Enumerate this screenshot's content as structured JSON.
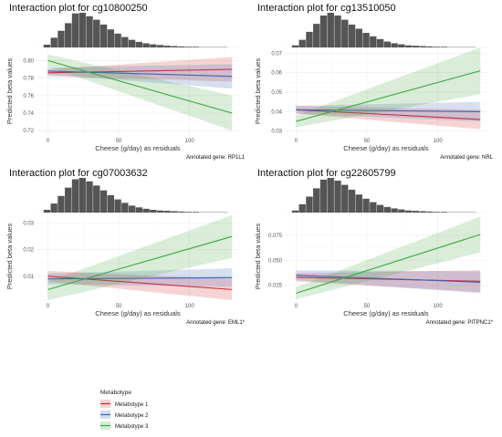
{
  "chart_data": [
    {
      "type": "line",
      "title": "Interaction plot for cg10800250",
      "xlabel": "Cheese (g/day) as residuals",
      "ylabel": "Predicted beta values",
      "xlim": [
        -8,
        135
      ],
      "ylim": [
        0.715,
        0.815
      ],
      "xticks": [
        0,
        50,
        100
      ],
      "yticks": [
        0.72,
        0.74,
        0.76,
        0.78,
        0.8
      ],
      "ytick_labels": [
        "0.72",
        "0.74",
        "0.76",
        "0.78",
        "0.80"
      ],
      "gene_note": "Annotated gene: RP1L1",
      "histogram": [
        8,
        28,
        48,
        70,
        98,
        100,
        90,
        80,
        66,
        52,
        40,
        30,
        22,
        16,
        12,
        9,
        7,
        5,
        4,
        3,
        2,
        2,
        1,
        1,
        1,
        1
      ],
      "series": [
        {
          "name": "Metabotype 1",
          "x": [
            0,
            130
          ],
          "y": [
            0.786,
            0.79
          ],
          "lower": [
            0.782,
            0.776
          ],
          "upper": [
            0.79,
            0.804
          ]
        },
        {
          "name": "Metabotype 2",
          "x": [
            0,
            130
          ],
          "y": [
            0.788,
            0.782
          ],
          "lower": [
            0.784,
            0.768
          ],
          "upper": [
            0.792,
            0.796
          ]
        },
        {
          "name": "Metabotype 3",
          "x": [
            0,
            130
          ],
          "y": [
            0.8,
            0.74
          ],
          "lower": [
            0.793,
            0.72
          ],
          "upper": [
            0.807,
            0.76
          ]
        }
      ]
    },
    {
      "type": "line",
      "title": "Interaction plot for cg13510050",
      "xlabel": "Cheese (g/day) as residuals",
      "ylabel": "Predicted beta values",
      "xlim": [
        -8,
        135
      ],
      "ylim": [
        0.028,
        0.073
      ],
      "xticks": [
        0,
        50,
        100
      ],
      "yticks": [
        0.03,
        0.04,
        0.05,
        0.06,
        0.07
      ],
      "ytick_labels": [
        "0.03",
        "0.04",
        "0.05",
        "0.06",
        "0.07"
      ],
      "gene_note": "Annotated gene: NRL",
      "histogram": [
        6,
        22,
        45,
        68,
        92,
        100,
        92,
        80,
        66,
        54,
        42,
        32,
        24,
        17,
        12,
        9,
        6,
        5,
        4,
        3,
        2,
        2,
        1,
        1,
        1,
        1
      ],
      "series": [
        {
          "name": "Metabotype 1",
          "x": [
            0,
            130
          ],
          "y": [
            0.041,
            0.036
          ],
          "lower": [
            0.039,
            0.031
          ],
          "upper": [
            0.043,
            0.041
          ]
        },
        {
          "name": "Metabotype 2",
          "x": [
            0,
            130
          ],
          "y": [
            0.041,
            0.04
          ],
          "lower": [
            0.039,
            0.035
          ],
          "upper": [
            0.043,
            0.045
          ]
        },
        {
          "name": "Metabotype 3",
          "x": [
            0,
            130
          ],
          "y": [
            0.035,
            0.061
          ],
          "lower": [
            0.032,
            0.049
          ],
          "upper": [
            0.038,
            0.073
          ]
        }
      ]
    },
    {
      "type": "line",
      "title": "Interaction plot for cg07003632",
      "xlabel": "Cheese (g/day) as residuals",
      "ylabel": "Predicted beta values",
      "xlim": [
        -8,
        135
      ],
      "ylim": [
        0.001,
        0.034
      ],
      "xticks": [
        0,
        50,
        100
      ],
      "yticks": [
        0.01,
        0.02,
        0.03
      ],
      "ytick_labels": [
        "0.01",
        "0.02",
        "0.03"
      ],
      "gene_note": "Annotated gene: EML1*",
      "histogram": [
        8,
        26,
        48,
        72,
        96,
        100,
        90,
        78,
        64,
        50,
        38,
        28,
        20,
        15,
        11,
        8,
        6,
        5,
        4,
        3,
        2,
        2,
        1,
        1,
        1,
        1
      ],
      "series": [
        {
          "name": "Metabotype 1",
          "x": [
            0,
            130
          ],
          "y": [
            0.01,
            0.005
          ],
          "lower": [
            0.008,
            0.001
          ],
          "upper": [
            0.012,
            0.009
          ]
        },
        {
          "name": "Metabotype 2",
          "x": [
            0,
            130
          ],
          "y": [
            0.009,
            0.0095
          ],
          "lower": [
            0.007,
            0.006
          ],
          "upper": [
            0.011,
            0.013
          ]
        },
        {
          "name": "Metabotype 3",
          "x": [
            0,
            130
          ],
          "y": [
            0.005,
            0.025
          ],
          "lower": [
            0.001,
            0.017
          ],
          "upper": [
            0.008,
            0.033
          ]
        }
      ]
    },
    {
      "type": "line",
      "title": "Interaction plot for cg22605799",
      "xlabel": "Cheese (g/day) as residuals",
      "ylabel": "Predicted beta values",
      "xlim": [
        -8,
        135
      ],
      "ylim": [
        0.01,
        0.098
      ],
      "xticks": [
        0,
        50,
        100
      ],
      "yticks": [
        0.025,
        0.05,
        0.075
      ],
      "ytick_labels": [
        "0.025",
        "0.050",
        "0.075"
      ],
      "gene_note": "Annotated gene: PITPNC1*",
      "histogram": [
        6,
        24,
        46,
        70,
        95,
        100,
        92,
        80,
        66,
        52,
        40,
        30,
        22,
        16,
        12,
        9,
        6,
        5,
        4,
        3,
        2,
        2,
        1,
        1,
        1,
        1
      ],
      "series": [
        {
          "name": "Metabotype 1",
          "x": [
            0,
            130
          ],
          "y": [
            0.033,
            0.029
          ],
          "lower": [
            0.029,
            0.018
          ],
          "upper": [
            0.037,
            0.04
          ]
        },
        {
          "name": "Metabotype 2",
          "x": [
            0,
            130
          ],
          "y": [
            0.035,
            0.028
          ],
          "lower": [
            0.03,
            0.017
          ],
          "upper": [
            0.04,
            0.039
          ]
        },
        {
          "name": "Metabotype 3",
          "x": [
            0,
            130
          ],
          "y": [
            0.017,
            0.076
          ],
          "lower": [
            0.011,
            0.058
          ],
          "upper": [
            0.023,
            0.094
          ]
        }
      ]
    }
  ],
  "legend": {
    "title": "Metabotype",
    "items": [
      "Metabotype 1",
      "Metabotype 2",
      "Metabotype 3"
    ]
  },
  "colors": {
    "Metabotype 1": "#d62728",
    "Metabotype 2": "#3a64b3",
    "Metabotype 3": "#3fa63f",
    "histogram": "#555555",
    "panel_bg": "#ffffff",
    "grid": "#ebebeb"
  }
}
